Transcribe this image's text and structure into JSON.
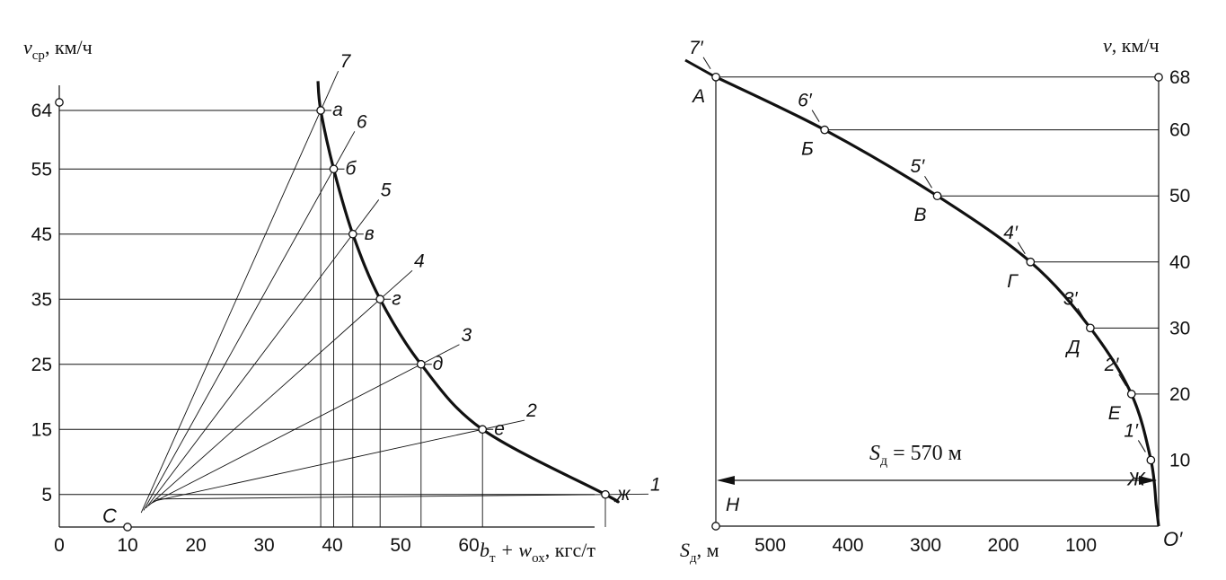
{
  "left_panel": {
    "y_axis_label": "v",
    "y_axis_label_sub": "ср",
    "y_axis_unit": ", км/ч",
    "x_axis_label_b": "b",
    "x_axis_label_b_sub": "т",
    "x_axis_label_w": " + w",
    "x_axis_label_w_sub": "ох",
    "x_axis_unit": ", кгс/т",
    "origin_tick": "0",
    "pole_label": "C",
    "y_ticks": [
      "5",
      "15",
      "25",
      "35",
      "45",
      "55",
      "64"
    ],
    "x_ticks": [
      "10",
      "20",
      "30",
      "40",
      "50",
      "60"
    ],
    "points": [
      {
        "letter": "а",
        "ray": "7",
        "b_w": 38.3,
        "v": 64
      },
      {
        "letter": "б",
        "ray": "6",
        "b_w": 40.2,
        "v": 55
      },
      {
        "letter": "в",
        "ray": "5",
        "b_w": 43.0,
        "v": 45
      },
      {
        "letter": "г",
        "ray": "4",
        "b_w": 47.0,
        "v": 35
      },
      {
        "letter": "д",
        "ray": "3",
        "b_w": 53.0,
        "v": 25
      },
      {
        "letter": "е",
        "ray": "2",
        "b_w": 62.0,
        "v": 15
      },
      {
        "letter": "ж",
        "ray": "1",
        "b_w": 80.0,
        "v": 5
      }
    ]
  },
  "right_panel": {
    "y_axis_label": "v",
    "y_axis_unit": ", км/ч",
    "x_axis_label": "S",
    "x_axis_label_sub": "д",
    "x_axis_unit": ", м",
    "origin_label": "O′",
    "h_label": "H",
    "distance_label_S": "S",
    "distance_label_sub": "д",
    "distance_label_value": " = 570 м",
    "y_ticks": [
      "10",
      "20",
      "30",
      "40",
      "50",
      "60",
      "68"
    ],
    "x_ticks": [
      "500",
      "400",
      "300",
      "200",
      "100"
    ],
    "points": [
      {
        "letter": "А",
        "mark": "7′",
        "s": 570,
        "v": 68
      },
      {
        "letter": "Б",
        "mark": "6′",
        "s": 430,
        "v": 60
      },
      {
        "letter": "В",
        "mark": "5′",
        "s": 285,
        "v": 50
      },
      {
        "letter": "Г",
        "mark": "4′",
        "s": 165,
        "v": 40
      },
      {
        "letter": "Д",
        "mark": "3′",
        "s": 88,
        "v": 30
      },
      {
        "letter": "Е",
        "mark": "2′",
        "s": 35,
        "v": 20
      },
      {
        "letter": "Ж",
        "mark": "1′",
        "s": 10,
        "v": 10
      }
    ]
  }
}
